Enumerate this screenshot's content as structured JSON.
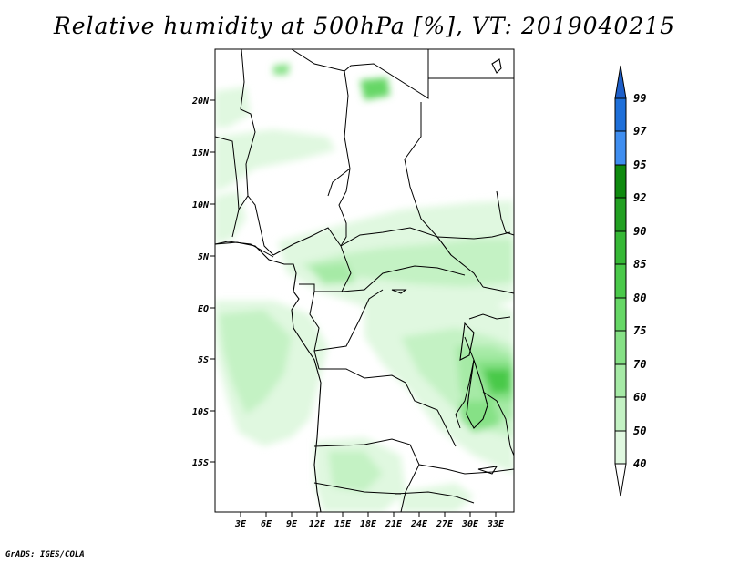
{
  "title": "Relative humidity at 500hPa [%], VT: 2019040215",
  "credit": "GrADS: IGES/COLA",
  "map": {
    "lat_labels": [
      "20N",
      "15N",
      "10N",
      "5N",
      "EQ",
      "5S",
      "10S",
      "15S"
    ],
    "lon_labels": [
      "3E",
      "6E",
      "9E",
      "12E",
      "15E",
      "18E",
      "21E",
      "24E",
      "27E",
      "30E",
      "33E"
    ]
  },
  "colorbar": {
    "levels": [
      "99",
      "97",
      "95",
      "92",
      "90",
      "85",
      "80",
      "75",
      "70",
      "60",
      "50",
      "40"
    ],
    "colors": [
      "#1e6fd9",
      "#3f8ef0",
      "#0f8a0f",
      "#22a022",
      "#36b836",
      "#4ac94a",
      "#66d766",
      "#86e186",
      "#a6eaa6",
      "#c4f2c4",
      "#e0f8e0",
      "#ffffff"
    ],
    "top_cap_color": "#1e5fc9"
  }
}
